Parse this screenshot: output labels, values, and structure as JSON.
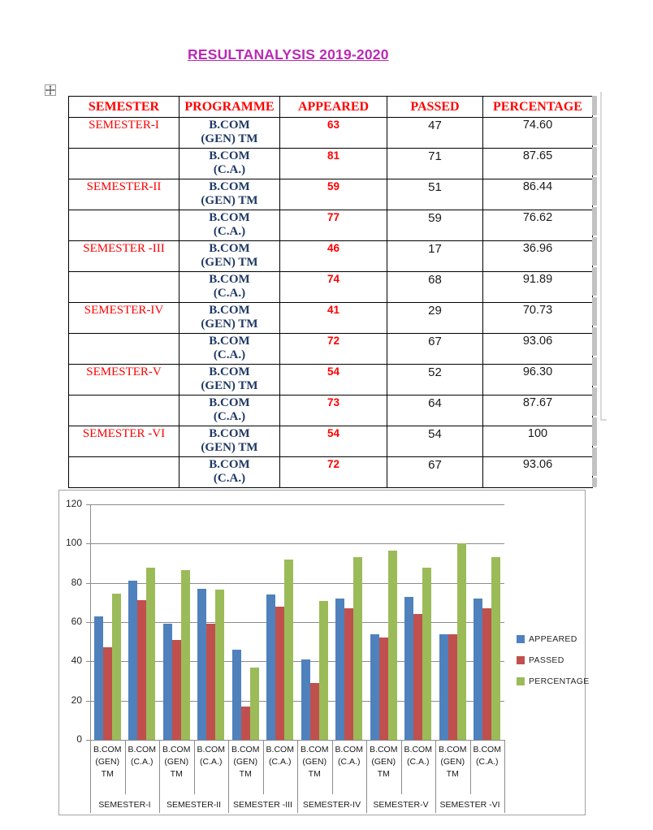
{
  "page": {
    "title": "RESULTANALYSIS 2019-2020",
    "title_color": "#b92bb5"
  },
  "table": {
    "header_color": "#ff0000",
    "programme_color": "#1f3864",
    "appeared_color": "#ff0000",
    "headers": [
      "SEMESTER",
      "PROGRAMME",
      "APPEARED",
      "PASSED",
      "PERCENTAGE"
    ],
    "rows": [
      {
        "semester": "SEMESTER-I",
        "programme_line1": "B.COM",
        "programme_line2": "(GEN) TM",
        "appeared": "63",
        "passed": "47",
        "percentage": "74.60"
      },
      {
        "semester": "",
        "programme_line1": "B.COM",
        "programme_line2": "(C.A.)",
        "appeared": "81",
        "passed": "71",
        "percentage": "87.65"
      },
      {
        "semester": "SEMESTER-II",
        "programme_line1": "B.COM",
        "programme_line2": "(GEN) TM",
        "appeared": "59",
        "passed": "51",
        "percentage": "86.44"
      },
      {
        "semester": "",
        "programme_line1": "B.COM",
        "programme_line2": "(C.A.)",
        "appeared": "77",
        "passed": "59",
        "percentage": "76.62"
      },
      {
        "semester": "SEMESTER -III",
        "programme_line1": "B.COM",
        "programme_line2": "(GEN) TM",
        "appeared": "46",
        "passed": "17",
        "percentage": "36.96"
      },
      {
        "semester": "",
        "programme_line1": "B.COM",
        "programme_line2": "(C.A.)",
        "appeared": "74",
        "passed": "68",
        "percentage": "91.89"
      },
      {
        "semester": "SEMESTER-IV",
        "programme_line1": "B.COM",
        "programme_line2": "(GEN) TM",
        "appeared": "41",
        "passed": "29",
        "percentage": "70.73"
      },
      {
        "semester": "",
        "programme_line1": "B.COM",
        "programme_line2": "(C.A.)",
        "appeared": "72",
        "passed": "67",
        "percentage": "93.06"
      },
      {
        "semester": "SEMESTER-V",
        "programme_line1": "B.COM",
        "programme_line2": "(GEN) TM",
        "appeared": "54",
        "passed": "52",
        "percentage": "96.30"
      },
      {
        "semester": "",
        "programme_line1": "B.COM",
        "programme_line2": "(C.A.)",
        "appeared": "73",
        "passed": "64",
        "percentage": "87.67"
      },
      {
        "semester": "SEMESTER -VI",
        "programme_line1": "B.COM",
        "programme_line2": "(GEN) TM",
        "appeared": "54",
        "passed": "54",
        "percentage": "100"
      },
      {
        "semester": "",
        "programme_line1": "B.COM",
        "programme_line2": "(C.A.)",
        "appeared": "72",
        "passed": "67",
        "percentage": "93.06"
      }
    ]
  },
  "chart_data": {
    "type": "bar",
    "title": "",
    "xlabel": "",
    "ylabel": "",
    "ylim": [
      0,
      120
    ],
    "yticks": [
      0,
      20,
      40,
      60,
      80,
      100,
      120
    ],
    "grid": true,
    "legend_position": "right",
    "categories": [
      "B.COM (GEN) TM",
      "B.COM (C.A.)",
      "B.COM (GEN) TM",
      "B.COM (C.A.)",
      "B.COM (GEN) TM",
      "B.COM (C.A.)",
      "B.COM (GEN) TM",
      "B.COM (C.A.)",
      "B.COM (GEN) TM",
      "B.COM (C.A.)",
      "B.COM (GEN) TM",
      "B.COM (C.A.)"
    ],
    "category_groups": [
      "SEMESTER-I",
      "SEMESTER-II",
      "SEMESTER -III",
      "SEMESTER-IV",
      "SEMESTER-V",
      "SEMESTER -VI"
    ],
    "series": [
      {
        "name": "APPEARED",
        "color": "#4f81bd",
        "values": [
          63,
          81,
          59,
          77,
          46,
          74,
          41,
          72,
          54,
          73,
          54,
          72
        ]
      },
      {
        "name": "PASSED",
        "color": "#c0504d",
        "values": [
          47,
          71,
          51,
          59,
          17,
          68,
          29,
          67,
          52,
          64,
          54,
          67
        ]
      },
      {
        "name": "PERCENTAGE",
        "color": "#9bbb59",
        "values": [
          74.6,
          87.65,
          86.44,
          76.62,
          36.96,
          91.89,
          70.73,
          93.06,
          96.3,
          87.67,
          100,
          93.06
        ]
      }
    ]
  }
}
